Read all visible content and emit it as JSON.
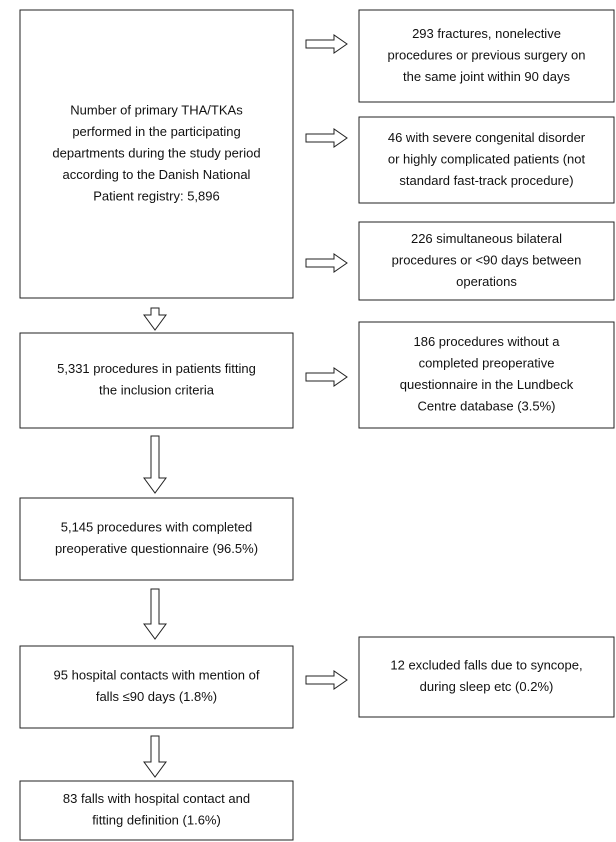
{
  "nodes": [
    {
      "lines": [
        "Number of primary THA/TKAs",
        "performed in the participating",
        "departments during the study period",
        "according to the Danish National",
        "Patient registry: 5,896"
      ]
    },
    {
      "lines": [
        "5,331 procedures in patients fitting",
        "the inclusion criteria"
      ]
    },
    {
      "lines": [
        "5,145 procedures with completed",
        "preoperative questionnaire (96.5%)"
      ]
    },
    {
      "lines": [
        "95 hospital contacts with mention of",
        "falls ≤90 days (1.8%)"
      ]
    },
    {
      "lines": [
        "83 falls with hospital contact and",
        "fitting definition (1.6%)"
      ]
    }
  ],
  "exclusions": [
    {
      "lines": [
        "293 fractures, nonelective",
        "procedures or previous surgery on",
        "the same joint within 90 days"
      ]
    },
    {
      "lines": [
        "46 with severe congenital disorder",
        "or highly complicated patients (not",
        "standard fast-track procedure)"
      ]
    },
    {
      "lines": [
        "226 simultaneous bilateral",
        "procedures or <90 days between",
        "operations"
      ]
    },
    {
      "lines": [
        "186 procedures without a",
        "completed preoperative",
        "questionnaire in the Lundbeck",
        "Centre database (3.5%)"
      ]
    },
    {
      "lines": [
        "12 excluded falls due to syncope,",
        "during sleep etc (0.2%)"
      ]
    }
  ]
}
